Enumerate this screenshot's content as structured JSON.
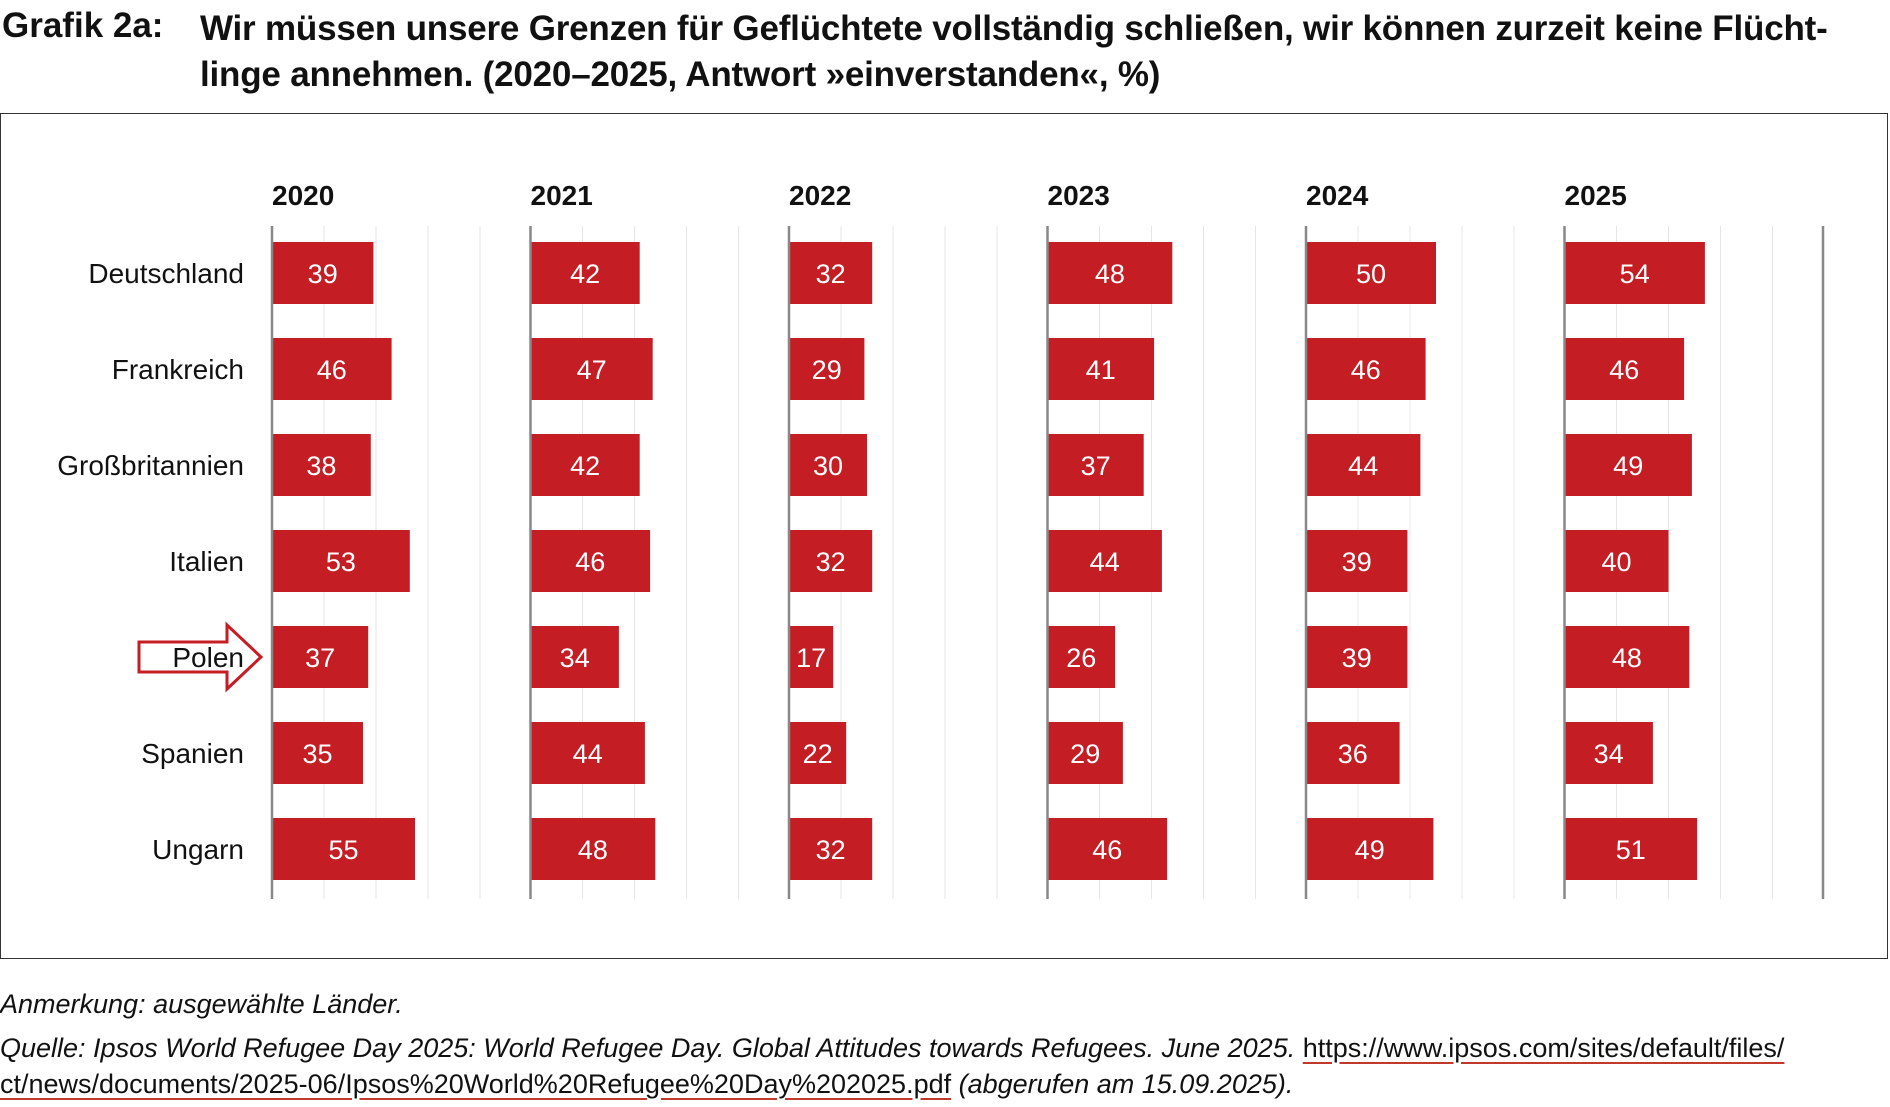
{
  "title": {
    "label": "Grafik 2a:",
    "text": "Wir müssen unsere Grenzen für Geflüchtete vollständig schließen, wir können zurzeit keine Flücht-linge annehmen. (2020–2025, Antwort »einverstanden«, %)"
  },
  "chart_data": {
    "type": "bar",
    "orientation": "horizontal",
    "layout": "small-multiples",
    "title": "Wir müssen unsere Grenzen für Geflüchtete vollständig schließen, wir können zurzeit keine Flüchtlinge annehmen. (2020–2025, Antwort »einverstanden«, %)",
    "categories": [
      "Deutschland",
      "Frankreich",
      "Großbritannien",
      "Italien",
      "Polen",
      "Spanien",
      "Ungarn"
    ],
    "highlighted_category": "Polen",
    "xlim": [
      0,
      100
    ],
    "grid": true,
    "bar_color": "#c41e24",
    "series": [
      {
        "name": "2020",
        "values": [
          39,
          46,
          38,
          53,
          37,
          35,
          55
        ]
      },
      {
        "name": "2021",
        "values": [
          42,
          47,
          42,
          46,
          34,
          44,
          48
        ]
      },
      {
        "name": "2022",
        "values": [
          32,
          29,
          30,
          32,
          17,
          22,
          32
        ]
      },
      {
        "name": "2023",
        "values": [
          48,
          41,
          37,
          44,
          26,
          29,
          46
        ]
      },
      {
        "name": "2024",
        "values": [
          50,
          46,
          44,
          39,
          39,
          36,
          49
        ]
      },
      {
        "name": "2025",
        "values": [
          54,
          46,
          49,
          40,
          48,
          34,
          51
        ]
      }
    ]
  },
  "notes": {
    "remark": "Anmerkung: ausgewählte Länder.",
    "source_prefix": "Quelle: Ipsos World Refugee Day 2025: World Refugee Day. Global Attitudes towards Refugees. June 2025.",
    "source_url_line1": "https://www.ipsos.com/sites/default/files/",
    "source_url_line2": "ct/news/documents/2025-06/Ipsos%20World%20Refugee%20Day%202025.pdf",
    "source_suffix": "(abgerufen am 15.09.2025)."
  }
}
